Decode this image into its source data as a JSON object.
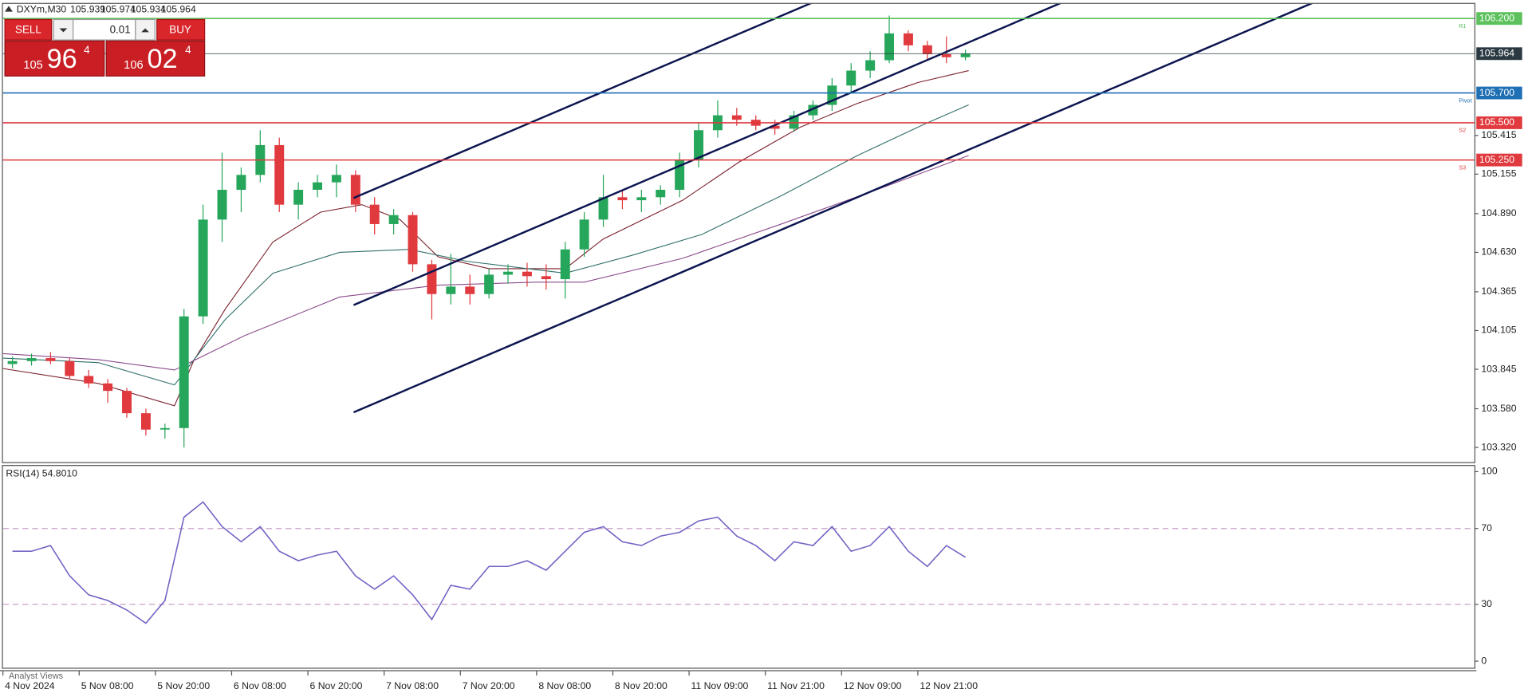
{
  "symbol": {
    "name": "DXYm,M30",
    "quote": [
      "105.939",
      "105.974",
      "105.934",
      "105.964"
    ]
  },
  "trade_panel": {
    "sell": "SELL",
    "lots": "0.01",
    "buy": "BUY",
    "sell_price": [
      "105",
      "96",
      "4"
    ],
    "buy_price": [
      "106",
      "02",
      "4"
    ]
  },
  "footer": "Analyst Views",
  "chart_data": [
    {
      "type": "candlestick",
      "x": [
        3,
        9,
        15,
        21,
        27,
        33,
        39,
        45,
        51,
        57,
        63,
        69,
        75,
        81,
        87,
        93,
        99,
        105,
        111,
        117,
        123,
        129,
        135,
        141,
        147,
        153,
        159,
        165,
        171,
        177,
        183,
        189,
        195,
        201,
        207,
        213,
        219,
        225,
        231,
        237,
        243,
        249,
        255,
        261,
        267,
        273,
        279,
        285,
        291,
        297,
        303
      ],
      "open": [
        103.88,
        103.9,
        103.92,
        103.9,
        103.8,
        103.75,
        103.7,
        103.55,
        103.44,
        103.45,
        104.2,
        104.85,
        105.05,
        105.15,
        105.35,
        104.95,
        105.05,
        105.1,
        105.15,
        104.95,
        104.82,
        104.88,
        104.55,
        104.35,
        104.4,
        104.35,
        104.48,
        104.5,
        104.47,
        104.45,
        104.65,
        104.85,
        105.0,
        104.98,
        105.0,
        105.05,
        105.25,
        105.45,
        105.55,
        105.52,
        105.48,
        105.46,
        105.55,
        105.62,
        105.75,
        105.85,
        105.92,
        106.1,
        106.02,
        105.96,
        105.94
      ],
      "high": [
        103.93,
        103.95,
        103.96,
        103.92,
        103.84,
        103.78,
        103.72,
        103.58,
        103.48,
        104.25,
        104.95,
        105.3,
        105.2,
        105.45,
        105.4,
        105.1,
        105.15,
        105.22,
        105.18,
        105.0,
        104.92,
        104.9,
        104.58,
        104.62,
        104.48,
        104.52,
        104.55,
        104.56,
        104.55,
        104.7,
        104.9,
        105.15,
        105.05,
        105.05,
        105.08,
        105.3,
        105.5,
        105.65,
        105.6,
        105.55,
        105.52,
        105.58,
        105.65,
        105.8,
        105.9,
        105.98,
        106.22,
        106.12,
        106.05,
        106.08,
        105.99
      ],
      "low": [
        103.85,
        103.87,
        103.88,
        103.78,
        103.72,
        103.62,
        103.52,
        103.4,
        103.38,
        103.32,
        104.15,
        104.7,
        104.9,
        105.1,
        104.9,
        104.85,
        105.0,
        105.0,
        104.9,
        104.75,
        104.75,
        104.5,
        104.18,
        104.28,
        104.28,
        104.32,
        104.42,
        104.4,
        104.38,
        104.32,
        104.6,
        104.8,
        104.92,
        104.9,
        104.95,
        105.0,
        105.2,
        105.4,
        105.48,
        105.45,
        105.42,
        105.44,
        105.52,
        105.58,
        105.7,
        105.8,
        105.9,
        105.98,
        105.92,
        105.9,
        105.92
      ],
      "close": [
        103.9,
        103.92,
        103.9,
        103.8,
        103.75,
        103.7,
        103.55,
        103.44,
        103.45,
        104.2,
        104.85,
        105.05,
        105.15,
        105.35,
        104.95,
        105.05,
        105.1,
        105.15,
        104.95,
        104.82,
        104.88,
        104.55,
        104.35,
        104.4,
        104.35,
        104.48,
        104.5,
        104.47,
        104.45,
        104.65,
        104.85,
        105.0,
        104.98,
        105.0,
        105.05,
        105.25,
        105.45,
        105.55,
        105.52,
        105.48,
        105.46,
        105.55,
        105.62,
        105.75,
        105.85,
        105.92,
        106.1,
        106.02,
        105.96,
        105.94,
        105.964
      ],
      "up_color": "#26a65b",
      "down_color": "#e0393e",
      "moving_averages": [
        {
          "color": "#7a1f2b",
          "x": [
            0,
            30,
            54,
            60,
            70,
            85,
            100,
            113,
            125,
            137,
            153,
            177,
            189,
            214,
            232,
            251,
            269,
            288,
            304
          ],
          "values": [
            103.85,
            103.75,
            103.6,
            103.9,
            104.25,
            104.7,
            104.9,
            104.95,
            104.85,
            104.6,
            104.52,
            104.52,
            104.72,
            104.98,
            105.24,
            105.47,
            105.63,
            105.77,
            105.85
          ]
        },
        {
          "color": "#2f6f6a",
          "x": [
            0,
            30,
            54,
            70,
            85,
            106,
            128,
            146,
            177,
            198,
            220,
            245,
            269,
            290,
            304
          ],
          "values": [
            103.92,
            103.89,
            103.74,
            104.18,
            104.49,
            104.63,
            104.65,
            104.57,
            104.49,
            104.61,
            104.75,
            105.01,
            105.28,
            105.49,
            105.62
          ]
        },
        {
          "color": "#8a4a8c",
          "x": [
            0,
            30,
            54,
            76,
            106,
            137,
            168,
            183,
            214,
            245,
            275,
            304
          ],
          "values": [
            103.95,
            103.91,
            103.84,
            104.07,
            104.33,
            104.41,
            104.43,
            104.43,
            104.59,
            104.82,
            105.05,
            105.28
          ]
        }
      ],
      "channels": [
        {
          "color": "#0c1450",
          "x": [
            110.4,
            254.6
          ],
          "values": [
            104.995,
            106.305
          ]
        },
        {
          "color": "#0c1450",
          "x": [
            110.4,
            333.1
          ],
          "values": [
            104.276,
            106.305
          ]
        },
        {
          "color": "#0c1450",
          "x": [
            110.4,
            412.3
          ],
          "values": [
            103.556,
            106.305
          ]
        }
      ],
      "levels": [
        {
          "value": 106.2,
          "label": "106.200",
          "name": "R1",
          "color": "#5cc15c"
        },
        {
          "value": 105.964,
          "label": "105.964",
          "color": "#2b3a42"
        },
        {
          "value": 105.7,
          "label": "105.700",
          "name": "Pivot",
          "color": "#1f6fb5"
        },
        {
          "value": 105.5,
          "label": "105.500",
          "name": "S2",
          "color": "#e0393e"
        },
        {
          "value": 105.25,
          "label": "105.250",
          "name": "S3",
          "color": "#e0393e"
        }
      ],
      "xlim": [
        0,
        463.2
      ],
      "ylim": [
        103.222,
        106.298
      ],
      "yticks": [
        {
          "value": 103.32,
          "label": "103.320"
        },
        {
          "value": 103.58,
          "label": "103.580"
        },
        {
          "value": 103.845,
          "label": "103.845"
        },
        {
          "value": 104.105,
          "label": "104.105"
        },
        {
          "value": 104.365,
          "label": "104.365"
        },
        {
          "value": 104.63,
          "label": "104.630"
        },
        {
          "value": 104.89,
          "label": "104.890"
        },
        {
          "value": 105.155,
          "label": "105.155"
        },
        {
          "value": 105.415,
          "label": "105.415"
        }
      ],
      "xticks": [
        {
          "value": 0,
          "label": "4 Nov 2024"
        },
        {
          "value": 24,
          "label": "5 Nov 08:00"
        },
        {
          "value": 48,
          "label": "5 Nov 20:00"
        },
        {
          "value": 72,
          "label": "6 Nov 08:00"
        },
        {
          "value": 96,
          "label": "6 Nov 20:00"
        },
        {
          "value": 120,
          "label": "7 Nov 08:00"
        },
        {
          "value": 144,
          "label": "7 Nov 20:00"
        },
        {
          "value": 168,
          "label": "8 Nov 08:00"
        },
        {
          "value": 192,
          "label": "8 Nov 20:00"
        },
        {
          "value": 216,
          "label": "11 Nov 09:00"
        },
        {
          "value": 240,
          "label": "11 Nov 21:00"
        },
        {
          "value": 264,
          "label": "12 Nov 09:00"
        },
        {
          "value": 288,
          "label": "12 Nov 21:00"
        }
      ]
    },
    {
      "type": "line",
      "title": "RSI(14) 54.8010",
      "color": "#7463c4",
      "x": [
        3,
        9,
        15,
        21,
        27,
        33,
        39,
        45,
        51,
        57,
        63,
        69,
        75,
        81,
        87,
        93,
        99,
        105,
        111,
        117,
        123,
        129,
        135,
        141,
        147,
        153,
        159,
        165,
        171,
        177,
        183,
        189,
        195,
        201,
        207,
        213,
        219,
        225,
        231,
        237,
        243,
        249,
        255,
        261,
        267,
        273,
        279,
        285,
        291,
        297,
        303
      ],
      "values": [
        58,
        58,
        61,
        45,
        35,
        32,
        27,
        20,
        32,
        76,
        84,
        71,
        63,
        71,
        58,
        53,
        56,
        58,
        45,
        38,
        45,
        35,
        22,
        40,
        38,
        50,
        50,
        53,
        48,
        58,
        68,
        71,
        63,
        61,
        66,
        68,
        74,
        76,
        66,
        61,
        53,
        63,
        61,
        71,
        58,
        61,
        71,
        58,
        50,
        61,
        54.8
      ],
      "xlim": [
        0,
        463.2
      ],
      "ylim": [
        -4,
        103
      ],
      "yticks": [
        0,
        30,
        70,
        100
      ],
      "level_lines": [
        30,
        70
      ]
    }
  ]
}
